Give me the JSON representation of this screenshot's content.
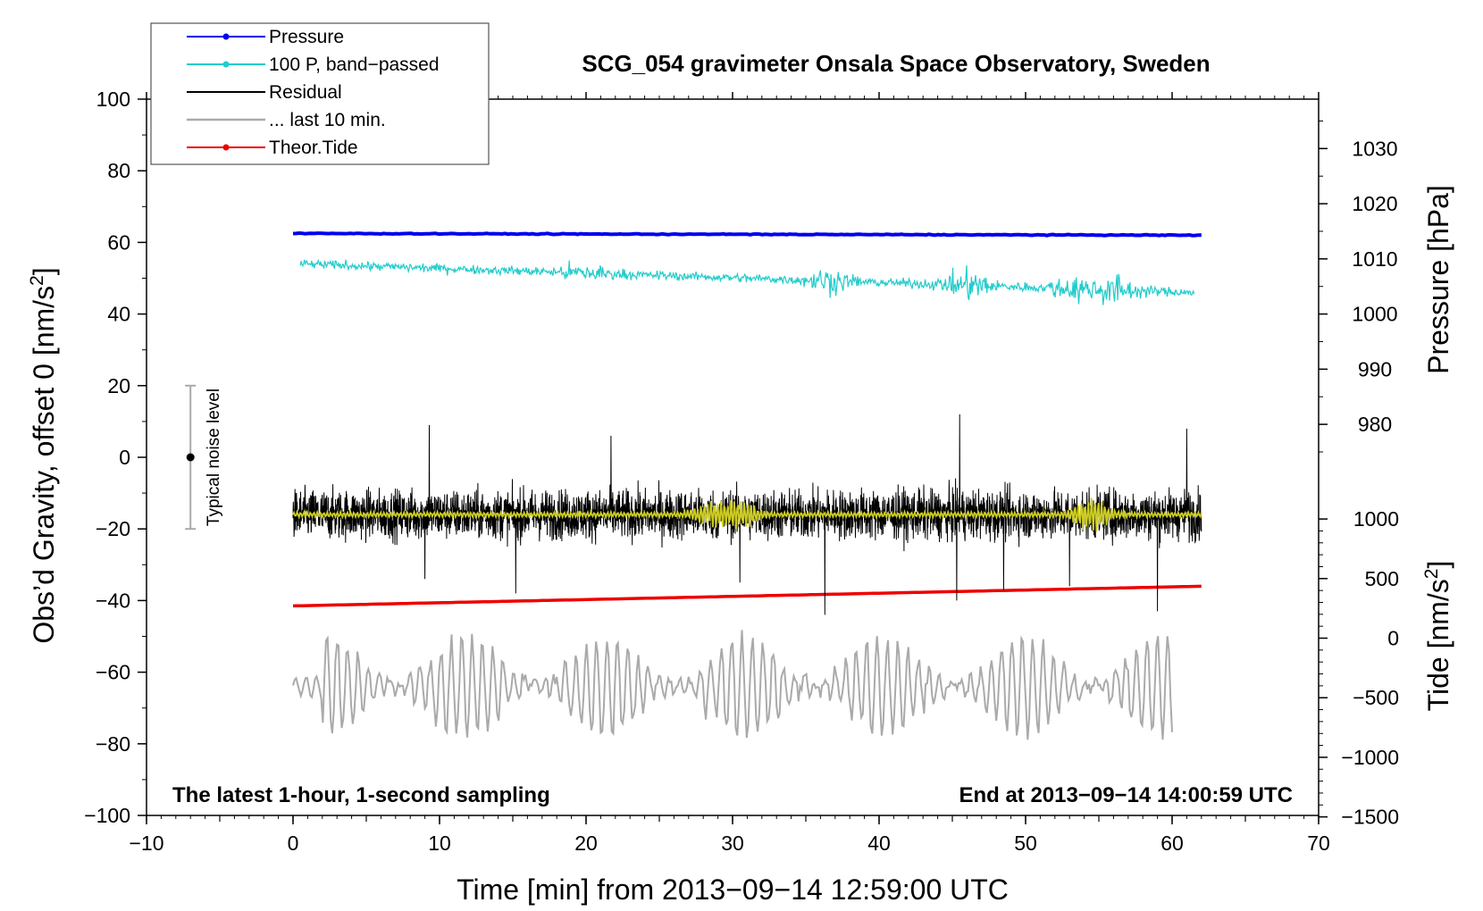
{
  "chart_data": {
    "type": "line",
    "title": "SCG_054 gravimeter Onsala Space Observatory, Sweden",
    "xlabel": "Time [min] from 2013−09−14 12:59:00 UTC",
    "ylabel_left": "Obs’d Gravity, offset 0 [nm/s",
    "ylabel_left_sup": "2",
    "ylabel_left_end": "]",
    "ylabel_right_pressure": "Pressure [hPa]",
    "ylabel_right_tide": "Tide [nm/s",
    "ylabel_right_tide_sup": "2",
    "ylabel_right_tide_end": "]",
    "xlim": [
      -10,
      70
    ],
    "ylim": [
      -100,
      100
    ],
    "x_ticks": [
      -10,
      0,
      10,
      20,
      30,
      40,
      50,
      60,
      70
    ],
    "x_tick_labels": [
      "−10",
      "0",
      "10",
      "20",
      "30",
      "40",
      "50",
      "60",
      "70"
    ],
    "y_ticks": [
      -100,
      -80,
      -60,
      -40,
      -20,
      0,
      20,
      40,
      60,
      80,
      100
    ],
    "y_tick_labels": [
      "−100",
      "−80",
      "−60",
      "−40",
      "−20",
      "0",
      "20",
      "40",
      "60",
      "80",
      "100"
    ],
    "pressure_axis": {
      "ticks": [
        980,
        990,
        1000,
        1010,
        1020,
        1030
      ],
      "tick_labels": [
        "980",
        "990",
        "1000",
        "1010",
        "1020",
        "1030"
      ],
      "gravity_at_1000": 40,
      "gravity_per_hpa": 1.54
    },
    "tide_axis": {
      "ticks": [
        -1500,
        -1000,
        -500,
        0,
        500,
        1000
      ],
      "tick_labels": [
        "−1500",
        "−1000",
        "−500",
        "0",
        "500",
        "1000"
      ],
      "gravity_at_0": -50.5,
      "gravity_per_unit": 0.03327
    },
    "notes": {
      "left": "The latest 1‑hour, 1‑second sampling",
      "right": "End at 2013−09−14 14:00:59 UTC"
    },
    "noise_bar": {
      "x": -7,
      "center": 0,
      "low": -20,
      "high": 20,
      "label": "Typical noise level"
    },
    "legend": [
      {
        "label": "Pressure",
        "color": "#0000ee",
        "marker": true
      },
      {
        "label": "100 P, band−passed",
        "color": "#22cccc",
        "marker": true
      },
      {
        "label": "Residual",
        "color": "#000000",
        "marker": false
      },
      {
        "label": "... last 10 min.",
        "color": "#aaaaaa",
        "marker": false
      },
      {
        "label": "Theor.Tide",
        "color": "#ee0000",
        "marker": true
      }
    ],
    "series": [
      {
        "name": "Pressure",
        "color": "#0000ee",
        "x_range": [
          0,
          62
        ],
        "start": 62.5,
        "end": 62.0,
        "noise_amp": 0.2
      },
      {
        "name": "100 P, band-passed",
        "color": "#22cccc",
        "x_range": [
          0.5,
          61.5
        ],
        "start": 54,
        "end": 46,
        "noise_amp": 1.5,
        "bursts": [
          {
            "at": 20,
            "amp": 2.5
          },
          {
            "at": 36.5,
            "amp": 3
          },
          {
            "at": 46,
            "amp": 4
          },
          {
            "at": 53,
            "amp": 3
          },
          {
            "at": 56,
            "amp": 4
          }
        ]
      },
      {
        "name": "Residual",
        "color": "#000000",
        "x_range": [
          0,
          62
        ],
        "center": -16,
        "noise_amp": 9,
        "spikes": [
          {
            "at": 9.3,
            "val": 9
          },
          {
            "at": 9.0,
            "val": -34
          },
          {
            "at": 15.2,
            "val": -38
          },
          {
            "at": 21.7,
            "val": 6
          },
          {
            "at": 30.5,
            "val": -35
          },
          {
            "at": 36.3,
            "val": -44
          },
          {
            "at": 45.5,
            "val": 12
          },
          {
            "at": 45.3,
            "val": -40
          },
          {
            "at": 48.5,
            "val": -37
          },
          {
            "at": 53.0,
            "val": -36
          },
          {
            "at": 59.0,
            "val": -43
          },
          {
            "at": 61.0,
            "val": 8
          }
        ]
      },
      {
        "name": "Residual smoothed",
        "color": "#cccc22",
        "x_range": [
          0,
          62
        ],
        "center": -16,
        "noise_amp": 0.8,
        "bursts": [
          {
            "at": 28.5,
            "amp": 3
          },
          {
            "at": 30.5,
            "amp": 4
          },
          {
            "at": 54.5,
            "amp": 4.5
          }
        ]
      },
      {
        "name": "... last 10 min.",
        "color": "#aaaaaa",
        "x_range": [
          0,
          60
        ],
        "center": -64,
        "amp": 14
      },
      {
        "name": "Theor.Tide",
        "color": "#ee0000",
        "x_range": [
          0,
          62
        ],
        "start": -41.5,
        "end": -36.0
      }
    ]
  }
}
